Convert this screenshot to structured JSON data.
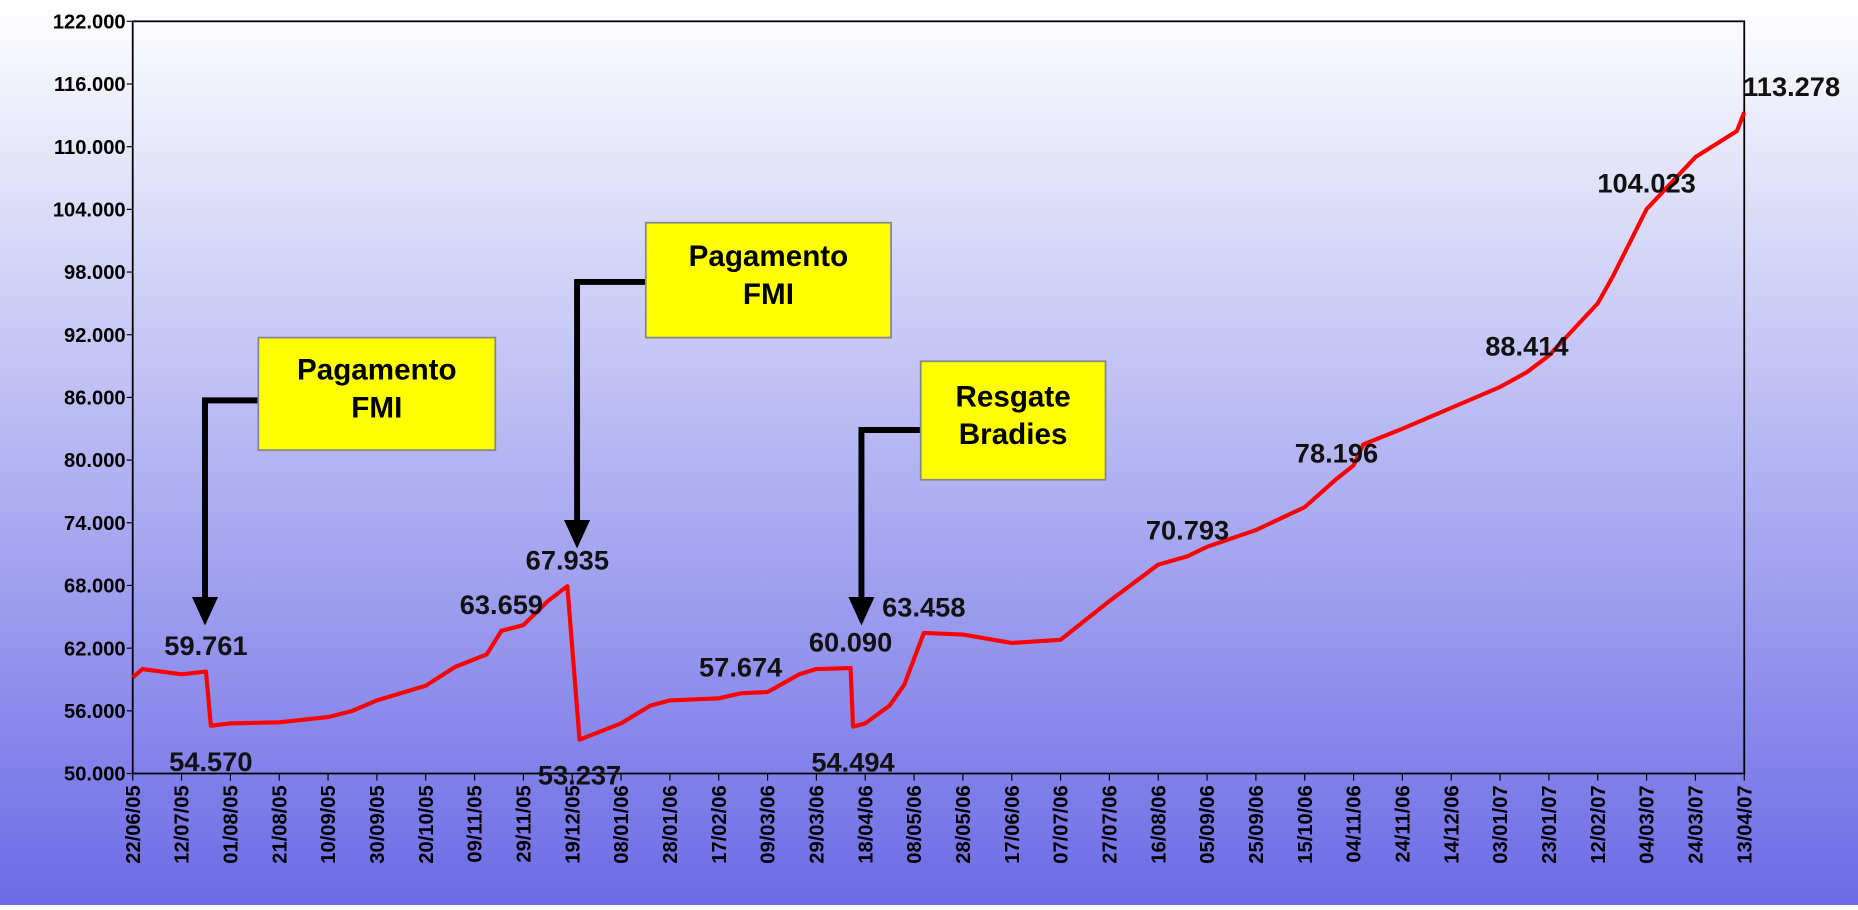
{
  "chart_data": {
    "type": "line",
    "x": [
      "22/06/05",
      "26/06/05",
      "12/07/05",
      "22/07/05",
      "24/07/05",
      "01/08/05",
      "21/08/05",
      "10/09/05",
      "20/09/05",
      "30/09/05",
      "20/10/05",
      "01/11/05",
      "14/11/05",
      "20/11/05",
      "29/11/05",
      "09/12/05",
      "17/12/05",
      "22/12/05",
      "08/01/06",
      "20/01/06",
      "28/01/06",
      "17/02/06",
      "26/02/06",
      "09/03/06",
      "22/03/06",
      "29/03/06",
      "12/04/06",
      "13/04/06",
      "18/04/06",
      "28/04/06",
      "04/05/06",
      "12/05/06",
      "28/05/06",
      "17/06/06",
      "07/07/06",
      "27/07/06",
      "16/08/06",
      "28/08/06",
      "05/09/06",
      "25/09/06",
      "15/10/06",
      "28/10/06",
      "04/11/06",
      "08/11/06",
      "24/11/06",
      "14/12/06",
      "03/01/07",
      "14/01/07",
      "23/01/07",
      "12/02/07",
      "18/02/07",
      "04/03/07",
      "24/03/07",
      "10/04/07",
      "13/04/07"
    ],
    "series": [
      {
        "color": "#ff0000",
        "values": [
          59200,
          60000,
          59500,
          59761,
          54570,
          54800,
          54900,
          55400,
          56000,
          57000,
          58400,
          60200,
          61400,
          63659,
          64200,
          66500,
          67935,
          53237,
          54800,
          56500,
          57000,
          57200,
          57674,
          57800,
          59500,
          60000,
          60090,
          54494,
          54800,
          56500,
          58500,
          63458,
          63300,
          62500,
          62800,
          66500,
          70000,
          70793,
          71700,
          73300,
          75500,
          78196,
          79500,
          81500,
          83000,
          85000,
          87000,
          88414,
          90000,
          95000,
          97500,
          104023,
          109000,
          111500,
          113278
        ],
        "value_labels": [
          null,
          null,
          null,
          "59.761",
          "54.570",
          null,
          null,
          null,
          null,
          null,
          null,
          null,
          null,
          "63.659",
          null,
          null,
          "67.935",
          "53.237",
          null,
          null,
          null,
          null,
          "57.674",
          null,
          null,
          null,
          "60.090",
          "54.494",
          null,
          null,
          null,
          "63.458",
          null,
          null,
          null,
          null,
          null,
          "70.793",
          null,
          null,
          null,
          "78.196",
          null,
          null,
          null,
          null,
          null,
          "88.414",
          null,
          null,
          null,
          "104.023",
          null,
          null,
          "113.278"
        ]
      }
    ],
    "xlim": [
      "22/06/05",
      "13/04/07"
    ],
    "xticks": [
      "22/06/05",
      "12/07/05",
      "01/08/05",
      "21/08/05",
      "10/09/05",
      "30/09/05",
      "20/10/05",
      "09/11/05",
      "29/11/05",
      "19/12/05",
      "08/01/06",
      "28/01/06",
      "17/02/06",
      "09/03/06",
      "29/03/06",
      "18/04/06",
      "08/05/06",
      "28/05/06",
      "17/06/06",
      "07/07/06",
      "27/07/06",
      "16/08/06",
      "05/09/06",
      "25/09/06",
      "15/10/06",
      "04/11/06",
      "24/11/06",
      "14/12/06",
      "03/01/07",
      "23/01/07",
      "12/02/07",
      "04/03/07",
      "24/03/07",
      "13/04/07"
    ],
    "ylim": [
      50000,
      122000
    ],
    "yticks": [
      {
        "value": 50000,
        "label": "50.000"
      },
      {
        "value": 56000,
        "label": "56.000"
      },
      {
        "value": 62000,
        "label": "62.000"
      },
      {
        "value": 68000,
        "label": "68.000"
      },
      {
        "value": 74000,
        "label": "74.000"
      },
      {
        "value": 80000,
        "label": "80.000"
      },
      {
        "value": 86000,
        "label": "86.000"
      },
      {
        "value": 92000,
        "label": "92.000"
      },
      {
        "value": 98000,
        "label": "98.000"
      },
      {
        "value": 104000,
        "label": "104.000"
      },
      {
        "value": 110000,
        "label": "110.000"
      },
      {
        "value": 116000,
        "label": "116.000"
      },
      {
        "value": 122000,
        "label": "122.000"
      }
    ],
    "annotations": [
      {
        "lines": [
          "Pagamento",
          "FMI"
        ]
      },
      {
        "lines": [
          "Pagamento",
          "FMI"
        ]
      },
      {
        "lines": [
          "Resgate",
          "Bradies"
        ]
      }
    ]
  }
}
